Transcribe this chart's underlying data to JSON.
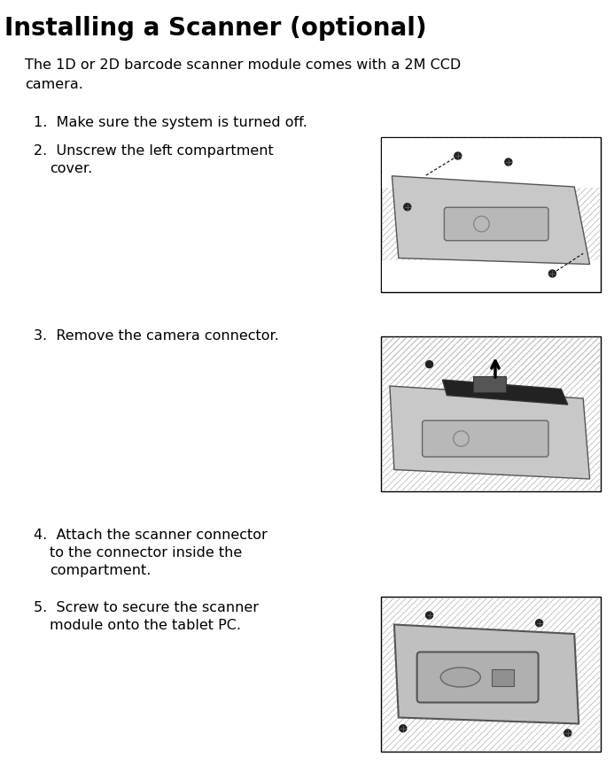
{
  "title": "Installing a Scanner (optional)",
  "intro_line1": "The 1D or 2D barcode scanner module comes with a 2M CCD",
  "intro_line2": "camera.",
  "steps": [
    "Make sure the system is turned off.",
    "Unscrew the left compartment\n     cover.",
    "Remove the camera connector.",
    "Attach the scanner connector\n     to the connector inside the\n     compartment.",
    "Screw to secure the scanner\n     module onto the tablet PC."
  ],
  "bg_color": "#ffffff",
  "text_color": "#000000",
  "title_fontsize": 20,
  "body_fontsize": 11.5,
  "step_fontsize": 11.5,
  "fig_width": 6.93,
  "fig_height": 8.63,
  "dpi": 100
}
